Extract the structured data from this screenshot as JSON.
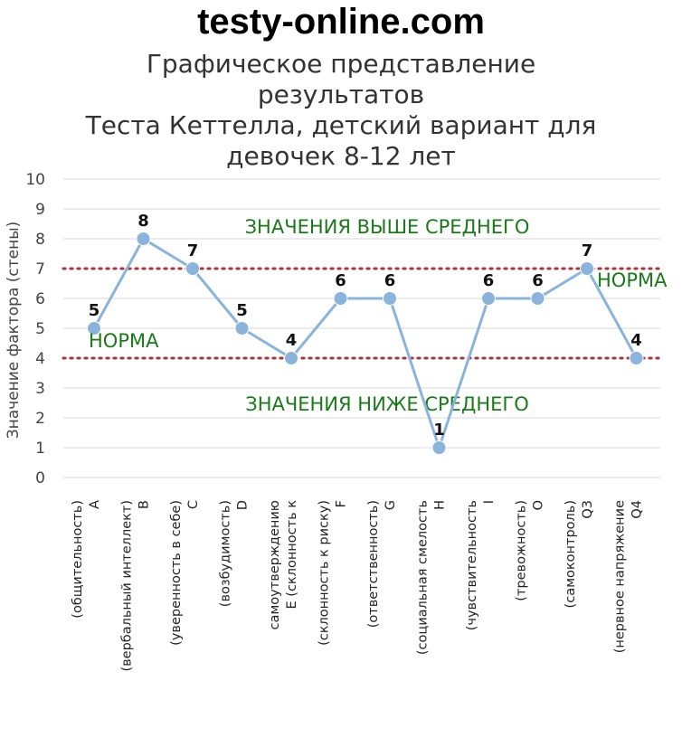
{
  "site": {
    "title": "testy-online.com"
  },
  "chart_data": {
    "type": "line",
    "title_lines": [
      "Графическое представление",
      "результатов",
      "Теста Кеттелла, детский вариант для",
      "девочек 8-12 лет"
    ],
    "ylabel": "Значение фактора (стены)",
    "xlabel": "",
    "ylim": [
      0,
      10
    ],
    "yticks": [
      0,
      1,
      2,
      3,
      4,
      5,
      6,
      7,
      8,
      9,
      10
    ],
    "grid": true,
    "categories": [
      [
        "A",
        "(общительность)"
      ],
      [
        "B",
        "(вербальный интеллект)"
      ],
      [
        "C",
        "(уверенность в себе)"
      ],
      [
        "D",
        "(возбудимость)"
      ],
      [
        "E (склонность к",
        "самоутверждению"
      ],
      [
        "F",
        "(склонность к риску)"
      ],
      [
        "G",
        "(ответственность)"
      ],
      [
        "H",
        "(социальная смелость"
      ],
      [
        "I",
        "(чувствительность"
      ],
      [
        "O",
        "(тревожность)"
      ],
      [
        "Q3",
        "(самоконтроль)"
      ],
      [
        "Q4",
        "(нервное напряжение"
      ]
    ],
    "values": [
      5,
      8,
      7,
      5,
      4,
      6,
      6,
      1,
      6,
      6,
      7,
      4
    ],
    "data_labels": [
      "5",
      "8",
      "7",
      "5",
      "4",
      "6",
      "6",
      "1",
      "6",
      "6",
      "7",
      "4"
    ],
    "reference_lines": [
      7,
      4
    ],
    "annotations": {
      "above": "ЗНАЧЕНИЯ ВЫШЕ СРЕДНЕГО",
      "below": "ЗНАЧЕНИЯ НИЖЕ СРЕДНЕГО",
      "norm_left": "НОРМА",
      "norm_right": "НОРМА"
    },
    "colors": {
      "line": "#8ab4dc",
      "marker": "#8ab4dc",
      "reference": "#b0303a",
      "grid": "#d9d9d9",
      "annotation": "#1a7a1a"
    }
  }
}
